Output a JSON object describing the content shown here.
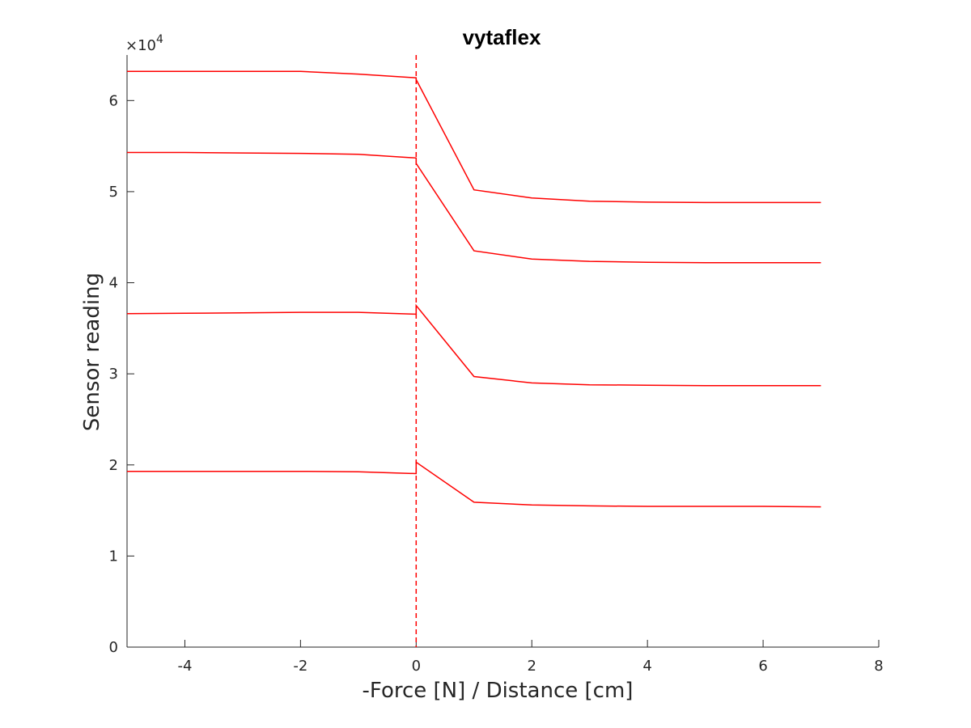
{
  "chart_data": {
    "type": "line",
    "title": "vytaflex",
    "xlabel": "-Force [N] / Distance [cm]",
    "ylabel": "Sensor reading",
    "y_multiplier_label": "×10",
    "y_multiplier_exponent": "4",
    "xlim": [
      -5,
      8
    ],
    "ylim": [
      0,
      65000
    ],
    "xticks": [
      -4,
      -2,
      0,
      2,
      4,
      6,
      8
    ],
    "xtick_labels": [
      "-4",
      "-2",
      "0",
      "2",
      "4",
      "6",
      "8"
    ],
    "yticks": [
      0,
      10000,
      20000,
      30000,
      40000,
      50000,
      60000
    ],
    "ytick_labels": [
      "0",
      "1",
      "2",
      "3",
      "4",
      "5",
      "6"
    ],
    "grid": false,
    "line_color": "#ff0000",
    "reference_line": {
      "x": 0,
      "style": "dashed",
      "color": "#ff0000"
    },
    "series": [
      {
        "x": [
          -5,
          -4,
          -3,
          -2,
          -1,
          0,
          0,
          1,
          2,
          3,
          4,
          5,
          6,
          7
        ],
        "y": [
          63200,
          63200,
          63200,
          63200,
          62900,
          62500,
          62300,
          50200,
          49300,
          48950,
          48850,
          48800,
          48800,
          48800
        ]
      },
      {
        "x": [
          -5,
          -4,
          -3,
          -2,
          -1,
          0,
          0,
          1,
          2,
          3,
          4,
          5,
          6,
          7
        ],
        "y": [
          54300,
          54300,
          54250,
          54200,
          54100,
          53700,
          53100,
          43500,
          42600,
          42350,
          42250,
          42200,
          42200,
          42200
        ]
      },
      {
        "x": [
          -5,
          -4,
          -3,
          -2,
          -1,
          0,
          0,
          1,
          2,
          3,
          4,
          5,
          6,
          7
        ],
        "y": [
          36600,
          36650,
          36700,
          36750,
          36750,
          36550,
          37500,
          29700,
          29000,
          28800,
          28750,
          28700,
          28700,
          28700
        ]
      },
      {
        "x": [
          -5,
          -4,
          -3,
          -2,
          -1,
          0,
          0,
          1,
          2,
          3,
          4,
          5,
          6,
          7
        ],
        "y": [
          19300,
          19300,
          19300,
          19300,
          19250,
          19050,
          20300,
          15900,
          15600,
          15500,
          15450,
          15450,
          15450,
          15400
        ]
      }
    ]
  }
}
